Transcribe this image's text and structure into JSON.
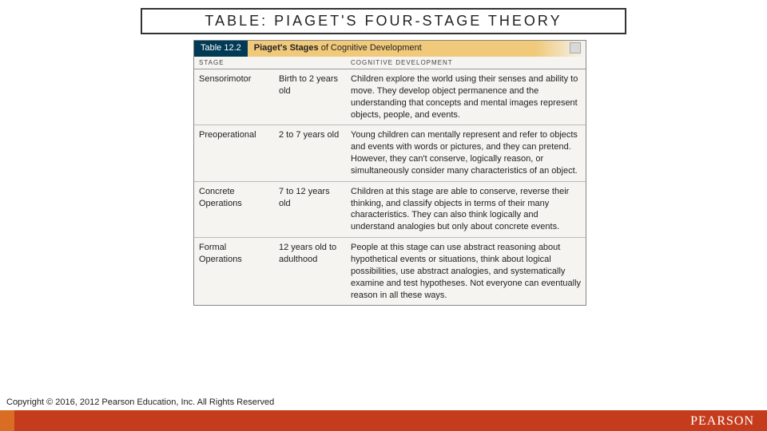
{
  "slide": {
    "title": "TABLE: PIAGET'S FOUR-STAGE THEORY"
  },
  "tableCaption": {
    "number": "Table 12.2",
    "bold": "Piaget's Stages",
    "rest": " of Cognitive Development"
  },
  "headers": {
    "stage": "STAGE",
    "age": "",
    "dev": "COGNITIVE DEVELOPMENT"
  },
  "rows": [
    {
      "stage": "Sensorimotor",
      "age": "Birth to 2 years old",
      "dev": "Children explore the world using their senses and ability to move. They develop object permanence and the understanding that concepts and mental images represent objects, people, and events."
    },
    {
      "stage": "Preoperational",
      "age": "2 to 7 years old",
      "dev": "Young children can mentally represent and refer to objects and events with words or pictures, and they can pretend. However, they can't conserve, logically reason, or simultaneously consider many characteristics of an object."
    },
    {
      "stage": "Concrete Operations",
      "age": "7 to 12 years old",
      "dev": "Children at this stage are able to conserve, reverse their thinking, and classify objects in terms of their many characteristics. They can also think logically and understand analogies but only about concrete events."
    },
    {
      "stage": "Formal Operations",
      "age": "12 years old to adulthood",
      "dev": "People at this stage can use abstract reasoning about hypothetical events or situations, think about logical possibilities, use abstract analogies, and systematically examine and test hypotheses. Not everyone can eventually reason in all these ways."
    }
  ],
  "footer": {
    "copyright": "Copyright © 2016, 2012 Pearson Education, Inc. All Rights Reserved",
    "brand": "PEARSON"
  },
  "colors": {
    "footer_bar": "#c43c1c",
    "footer_accent": "#d96d24",
    "caption_number_bg": "#003a55",
    "caption_title_bg": "#f0c97a",
    "border": "#888"
  }
}
